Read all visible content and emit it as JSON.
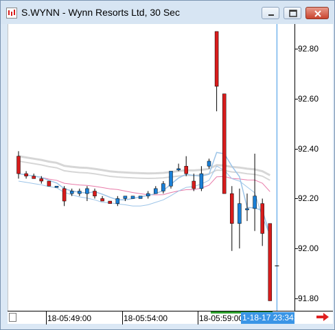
{
  "window": {
    "title": "S.WYNN - Wynn Resorts Ltd, 30 Sec"
  },
  "icons": {
    "app": "chart-app-icon",
    "minimize": "minimize-icon",
    "maximize": "maximize-icon",
    "close": "close-icon",
    "scroll": "scroll-right-icon"
  },
  "yaxis": {
    "labels": [
      "92.80",
      "92.60",
      "92.40",
      "92.20",
      "92.00",
      "91.80"
    ]
  },
  "xaxis": {
    "labels": [
      "18-05:49:00",
      "18-05:54:00",
      "18-05:59:00"
    ],
    "cursor_time": "1-18-17 23:34:00"
  },
  "colors": {
    "up": "#1a7fd6",
    "down": "#d81c1c",
    "ma_pink": "#e879a8",
    "ma_blue": "#9cc4e8",
    "ma_gray": "#d6d6d6",
    "cursor_line": "#3a95e6",
    "arrow": "#e02020"
  },
  "chart_data": {
    "type": "candlestick",
    "ylim": [
      91.75,
      92.9
    ],
    "ytick_values": [
      92.8,
      92.6,
      92.4,
      92.2,
      92.0,
      91.8
    ],
    "candles": [
      {
        "o": 92.37,
        "h": 92.39,
        "l": 92.28,
        "c": 92.3
      },
      {
        "o": 92.3,
        "h": 92.31,
        "l": 92.28,
        "c": 92.29
      },
      {
        "o": 92.29,
        "h": 92.3,
        "l": 92.28,
        "c": 92.28
      },
      {
        "o": 92.28,
        "h": 92.29,
        "l": 92.26,
        "c": 92.27
      },
      {
        "o": 92.27,
        "h": 92.27,
        "l": 92.25,
        "c": 92.25
      },
      {
        "o": 92.25,
        "h": 92.25,
        "l": 92.25,
        "c": 92.25
      },
      {
        "o": 92.24,
        "h": 92.25,
        "l": 92.17,
        "c": 92.19
      },
      {
        "o": 92.22,
        "h": 92.24,
        "l": 92.21,
        "c": 92.23
      },
      {
        "o": 92.22,
        "h": 92.24,
        "l": 92.21,
        "c": 92.23
      },
      {
        "o": 92.22,
        "h": 92.25,
        "l": 92.19,
        "c": 92.24
      },
      {
        "o": 92.23,
        "h": 92.24,
        "l": 92.2,
        "c": 92.21
      },
      {
        "o": 92.2,
        "h": 92.21,
        "l": 92.19,
        "c": 92.19
      },
      {
        "o": 92.19,
        "h": 92.19,
        "l": 92.18,
        "c": 92.18
      },
      {
        "o": 92.18,
        "h": 92.21,
        "l": 92.17,
        "c": 92.2
      },
      {
        "o": 92.2,
        "h": 92.21,
        "l": 92.19,
        "c": 92.21
      },
      {
        "o": 92.2,
        "h": 92.21,
        "l": 92.2,
        "c": 92.21
      },
      {
        "o": 92.2,
        "h": 92.21,
        "l": 92.2,
        "c": 92.21
      },
      {
        "o": 92.21,
        "h": 92.23,
        "l": 92.2,
        "c": 92.22
      },
      {
        "o": 92.22,
        "h": 92.25,
        "l": 92.22,
        "c": 92.24
      },
      {
        "o": 92.23,
        "h": 92.27,
        "l": 92.22,
        "c": 92.26
      },
      {
        "o": 92.25,
        "h": 92.31,
        "l": 92.24,
        "c": 92.31
      },
      {
        "o": 92.32,
        "h": 92.34,
        "l": 92.31,
        "c": 92.32
      },
      {
        "o": 92.33,
        "h": 92.37,
        "l": 92.29,
        "c": 92.3
      },
      {
        "o": 92.27,
        "h": 92.3,
        "l": 92.23,
        "c": 92.24
      },
      {
        "o": 92.24,
        "h": 92.33,
        "l": 92.23,
        "c": 92.3
      },
      {
        "o": 92.33,
        "h": 92.36,
        "l": 92.32,
        "c": 92.35
      },
      {
        "o": 92.87,
        "h": 92.87,
        "l": 92.55,
        "c": 92.65
      },
      {
        "o": 92.62,
        "h": 92.62,
        "l": 92.22,
        "c": 92.22
      },
      {
        "o": 92.22,
        "h": 92.25,
        "l": 91.99,
        "c": 92.1
      },
      {
        "o": 92.1,
        "h": 92.24,
        "l": 92.0,
        "c": 92.18
      },
      {
        "o": 92.16,
        "h": 92.22,
        "l": 92.11,
        "c": 92.16
      },
      {
        "o": 92.16,
        "h": 92.38,
        "l": 92.07,
        "c": 92.21
      },
      {
        "o": 92.18,
        "h": 92.2,
        "l": 92.01,
        "c": 92.06
      },
      {
        "o": 92.1,
        "h": 92.1,
        "l": 91.79,
        "c": 91.79
      }
    ],
    "cursor_close": 91.93
  }
}
